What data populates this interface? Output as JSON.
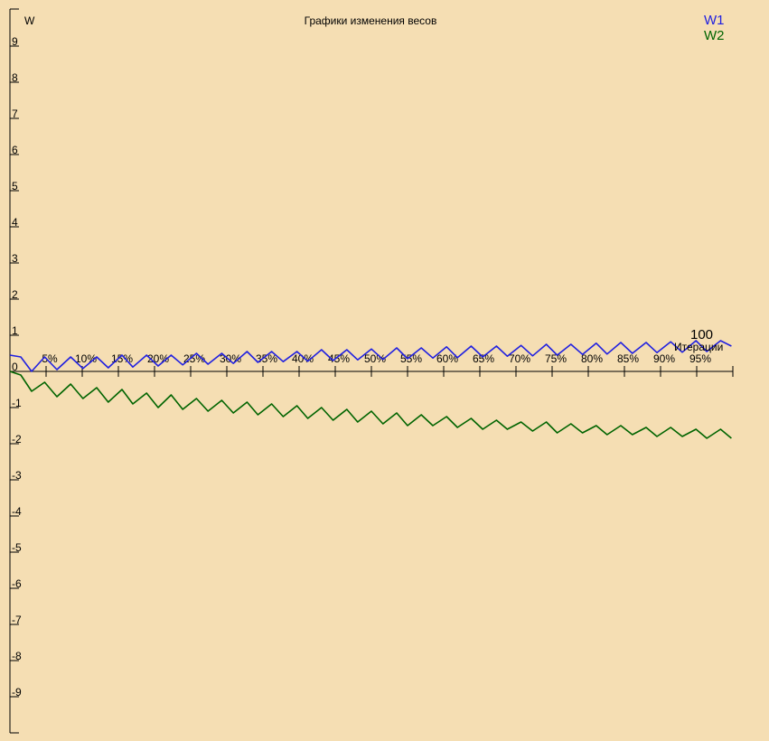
{
  "chart_data": {
    "type": "line",
    "title": "Графики изменения весов",
    "ylabel": "W",
    "xlabel": "Итерации",
    "x_end_label": "100",
    "ylim": [
      -10,
      10
    ],
    "xlim": [
      0,
      100
    ],
    "y_ticks": [
      "9",
      "8",
      "7",
      "6",
      "5",
      "4",
      "3",
      "2",
      "1",
      "0",
      "-1",
      "-2",
      "-3",
      "-4",
      "-5",
      "-6",
      "-7",
      "-8",
      "-9"
    ],
    "x_ticks": [
      "5%",
      "10%",
      "15%",
      "20%",
      "25%",
      "30%",
      "35%",
      "40%",
      "45%",
      "50%",
      "55%",
      "60%",
      "65%",
      "70%",
      "75%",
      "80%",
      "85%",
      "90%",
      "95%"
    ],
    "legend_position": "top-right",
    "series": [
      {
        "name": "W1",
        "color": "#2020e0",
        "x": [
          0,
          1.5,
          3,
          4.8,
          6.5,
          8.4,
          10.1,
          12.0,
          13.6,
          15.5,
          17.0,
          18.9,
          20.5,
          22.3,
          23.9,
          25.8,
          27.4,
          29.3,
          30.9,
          32.8,
          34.3,
          36.2,
          37.8,
          39.7,
          41.2,
          43.1,
          44.7,
          46.6,
          48.1,
          50.0,
          51.6,
          53.5,
          55.0,
          56.9,
          58.5,
          60.4,
          61.9,
          63.8,
          65.4,
          67.3,
          68.8,
          70.7,
          72.3,
          74.2,
          75.7,
          77.6,
          79.2,
          81.1,
          82.6,
          84.5,
          86.1,
          88.0,
          89.5,
          91.4,
          93.0,
          94.9,
          96.4,
          98.3,
          99.8
        ],
        "values": [
          0.45,
          0.4,
          0.0,
          0.4,
          0.05,
          0.4,
          0.08,
          0.4,
          0.1,
          0.45,
          0.12,
          0.45,
          0.15,
          0.45,
          0.18,
          0.5,
          0.2,
          0.5,
          0.22,
          0.55,
          0.25,
          0.55,
          0.27,
          0.55,
          0.28,
          0.6,
          0.3,
          0.6,
          0.32,
          0.62,
          0.33,
          0.65,
          0.35,
          0.65,
          0.37,
          0.68,
          0.38,
          0.7,
          0.4,
          0.7,
          0.42,
          0.72,
          0.43,
          0.75,
          0.45,
          0.75,
          0.47,
          0.78,
          0.48,
          0.8,
          0.5,
          0.8,
          0.52,
          0.82,
          0.53,
          0.85,
          0.55,
          0.85,
          0.7
        ]
      },
      {
        "name": "W2",
        "color": "#006400",
        "x": [
          0,
          1.5,
          3,
          4.8,
          6.5,
          8.4,
          10.1,
          12.0,
          13.6,
          15.5,
          17.0,
          18.9,
          20.5,
          22.3,
          23.9,
          25.8,
          27.4,
          29.3,
          30.9,
          32.8,
          34.3,
          36.2,
          37.8,
          39.7,
          41.2,
          43.1,
          44.7,
          46.6,
          48.1,
          50.0,
          51.6,
          53.5,
          55.0,
          56.9,
          58.5,
          60.4,
          61.9,
          63.8,
          65.4,
          67.3,
          68.8,
          70.7,
          72.3,
          74.2,
          75.7,
          77.6,
          79.2,
          81.1,
          82.6,
          84.5,
          86.1,
          88.0,
          89.5,
          91.4,
          93.0,
          94.9,
          96.4,
          98.3,
          99.8
        ],
        "values": [
          0.0,
          -0.1,
          -0.55,
          -0.3,
          -0.7,
          -0.35,
          -0.75,
          -0.45,
          -0.85,
          -0.5,
          -0.9,
          -0.6,
          -1.0,
          -0.65,
          -1.05,
          -0.75,
          -1.1,
          -0.8,
          -1.15,
          -0.85,
          -1.2,
          -0.9,
          -1.25,
          -0.95,
          -1.3,
          -1.0,
          -1.35,
          -1.05,
          -1.4,
          -1.1,
          -1.45,
          -1.15,
          -1.5,
          -1.2,
          -1.5,
          -1.25,
          -1.55,
          -1.3,
          -1.6,
          -1.35,
          -1.6,
          -1.4,
          -1.65,
          -1.4,
          -1.7,
          -1.45,
          -1.7,
          -1.5,
          -1.75,
          -1.5,
          -1.75,
          -1.55,
          -1.8,
          -1.55,
          -1.8,
          -1.6,
          -1.85,
          -1.6,
          -1.85
        ]
      }
    ]
  }
}
